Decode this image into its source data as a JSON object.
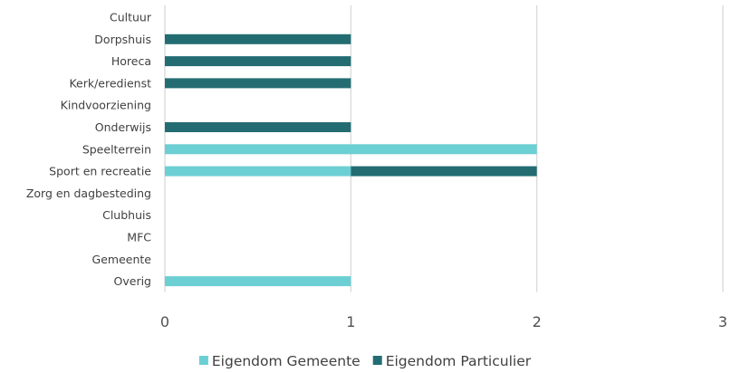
{
  "chart_data": {
    "type": "bar",
    "orientation": "horizontal",
    "stacked": true,
    "title": "",
    "xlabel": "",
    "ylabel": "",
    "categories": [
      "Cultuur",
      "Dorpshuis",
      "Horeca",
      "Kerk/eredienst",
      "Kindvoorziening",
      "Onderwijs",
      "Speelterrein",
      "Sport en recreatie",
      "Zorg en dagbesteding",
      "Clubhuis",
      "MFC",
      "Gemeente",
      "Overig"
    ],
    "series": [
      {
        "name": "Eigendom Gemeente",
        "color": "#6ccfd3",
        "values": [
          0,
          0,
          0,
          0,
          0,
          0,
          2,
          1,
          0,
          0,
          0,
          0,
          1
        ]
      },
      {
        "name": "Eigendom Particulier",
        "color": "#236d72",
        "values": [
          0,
          1,
          1,
          1,
          0,
          1,
          0,
          1,
          0,
          0,
          0,
          0,
          0
        ]
      }
    ],
    "xlim": [
      0,
      3
    ],
    "xticks": [
      "0",
      "1",
      "2",
      "3"
    ],
    "grid": true,
    "legend_position": "bottom"
  }
}
